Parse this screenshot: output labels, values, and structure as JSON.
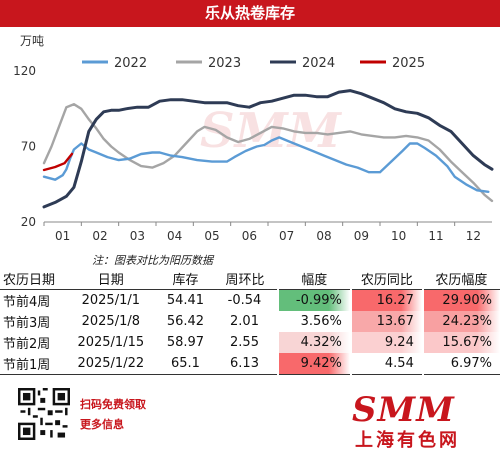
{
  "title": "乐从热卷库存",
  "note": "注：图表对比为阳历数据",
  "chart_data": {
    "type": "line",
    "ylabel": "万吨",
    "ylim": [
      20,
      120
    ],
    "yticks": [
      20,
      70,
      120
    ],
    "xlim": [
      1,
      13
    ],
    "xticks": [
      "01",
      "02",
      "03",
      "04",
      "05",
      "06",
      "07",
      "08",
      "09",
      "10",
      "11",
      "12"
    ],
    "legend_position": "top",
    "series": [
      {
        "name": "2022",
        "color": "#5b9bd5",
        "x": [
          1.0,
          1.3,
          1.5,
          1.6,
          1.7,
          1.8,
          1.9,
          2.0,
          2.2,
          2.4,
          2.7,
          3.0,
          3.3,
          3.6,
          3.9,
          4.1,
          4.4,
          4.7,
          4.9,
          5.1,
          5.5,
          5.9,
          6.1,
          6.4,
          6.7,
          6.9,
          7.1,
          7.3,
          7.6,
          7.9,
          8.2,
          8.5,
          8.8,
          9.1,
          9.4,
          9.7,
          10.0,
          10.3,
          10.6,
          10.8,
          11.0,
          11.2,
          11.5,
          11.8,
          12.0,
          12.3,
          12.6,
          12.9
        ],
        "y": [
          50,
          48,
          51,
          55,
          62,
          68,
          70,
          72,
          68,
          66,
          63,
          61,
          62,
          65,
          66,
          66,
          64,
          63,
          62,
          61,
          60,
          60,
          63,
          67,
          70,
          71,
          74,
          76,
          73,
          70,
          67,
          64,
          61,
          58,
          56,
          53,
          53,
          60,
          67,
          72,
          72,
          69,
          64,
          57,
          50,
          45,
          41,
          40
        ]
      },
      {
        "name": "2023",
        "color": "#a5a5a5",
        "x": [
          1.0,
          1.2,
          1.4,
          1.6,
          1.8,
          2.0,
          2.2,
          2.4,
          2.6,
          2.8,
          3.0,
          3.3,
          3.6,
          3.9,
          4.2,
          4.5,
          4.8,
          5.1,
          5.3,
          5.6,
          5.9,
          6.2,
          6.5,
          6.8,
          7.1,
          7.4,
          7.7,
          8.0,
          8.3,
          8.6,
          8.9,
          9.2,
          9.5,
          9.8,
          10.1,
          10.4,
          10.7,
          11.0,
          11.3,
          11.6,
          11.9,
          12.2,
          12.5,
          12.8,
          13.0
        ],
        "y": [
          59,
          70,
          83,
          96,
          98,
          95,
          88,
          82,
          75,
          70,
          66,
          61,
          57,
          56,
          59,
          64,
          72,
          80,
          83,
          81,
          76,
          73,
          75,
          79,
          83,
          82,
          80,
          79,
          79,
          78,
          79,
          80,
          78,
          77,
          76,
          76,
          77,
          76,
          74,
          68,
          60,
          53,
          46,
          38,
          34
        ]
      },
      {
        "name": "2024",
        "color": "#2e3b55",
        "x": [
          1.0,
          1.3,
          1.6,
          1.8,
          2.0,
          2.2,
          2.4,
          2.6,
          2.8,
          3.0,
          3.2,
          3.5,
          3.8,
          4.1,
          4.4,
          4.7,
          5.0,
          5.3,
          5.6,
          5.9,
          6.2,
          6.5,
          6.8,
          7.1,
          7.4,
          7.7,
          8.0,
          8.3,
          8.6,
          8.9,
          9.2,
          9.5,
          9.8,
          10.1,
          10.4,
          10.7,
          11.0,
          11.3,
          11.6,
          11.9,
          12.2,
          12.5,
          12.8,
          13.0
        ],
        "y": [
          30,
          33,
          37,
          43,
          60,
          80,
          88,
          93,
          94,
          94,
          95,
          96,
          96,
          100,
          101,
          101,
          100,
          99,
          99,
          99,
          97,
          96,
          99,
          100,
          102,
          104,
          104,
          103,
          103,
          106,
          107,
          105,
          102,
          99,
          95,
          93,
          92,
          89,
          84,
          80,
          72,
          64,
          58,
          55
        ]
      },
      {
        "name": "2025",
        "color": "#c00000",
        "x": [
          1.0,
          1.3,
          1.55,
          1.75
        ],
        "y": [
          54.41,
          56.42,
          58.97,
          65.1
        ]
      }
    ]
  },
  "table": {
    "headers": [
      "农历日期",
      "日期",
      "库存",
      "周环比",
      "幅度",
      "农历同比",
      "农历幅度"
    ],
    "rows": [
      [
        "节前4周",
        "2025/1/1",
        "54.41",
        "-0.54",
        "-0.99%",
        "16.27",
        "29.90%"
      ],
      [
        "节前3周",
        "2025/1/8",
        "56.42",
        "2.01",
        "3.56%",
        "13.67",
        "24.23%"
      ],
      [
        "节前2周",
        "2025/1/15",
        "58.97",
        "2.55",
        "4.32%",
        "9.24",
        "15.67%"
      ],
      [
        "节前1周",
        "2025/1/22",
        "65.1",
        "6.13",
        "9.42%",
        "4.54",
        "6.97%"
      ]
    ],
    "cell_colors": {
      "fudu": [
        "#63be7b",
        "#ffffff",
        "#f8d5d5",
        "#f8696b"
      ],
      "tongbi": [
        "#f8696b",
        "#f8a8a9",
        "#fbd0d1",
        "#ffffff"
      ],
      "nongli_fudu": [
        "#f8696b",
        "#f8a0a1",
        "#fbc8c9",
        "#ffffff"
      ]
    }
  },
  "footer": {
    "line1": "扫码免费领取",
    "line2": "更多信息",
    "logo": "SMM",
    "logo_cn": "上海有色网"
  }
}
